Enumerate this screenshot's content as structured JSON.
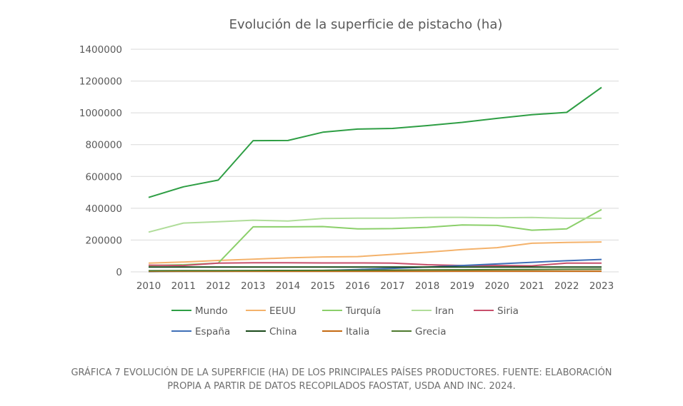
{
  "chart_data": {
    "type": "line",
    "title": "Evolución de la superficie de pistacho (ha)",
    "xlabel": "",
    "ylabel": "",
    "x": [
      "2010",
      "2011",
      "2012",
      "2013",
      "2014",
      "2015",
      "2016",
      "2017",
      "2018",
      "2019",
      "2020",
      "2021",
      "2022",
      "2023"
    ],
    "ylim": [
      0,
      1400000
    ],
    "yticks": [
      "0",
      "200000",
      "400000",
      "600000",
      "800000",
      "1000000",
      "1200000",
      "1400000"
    ],
    "grid": true,
    "legend_position": "bottom",
    "series": [
      {
        "name": "Mundo",
        "color": "#2e9e44",
        "values": [
          468000,
          535000,
          577000,
          825000,
          826000,
          878000,
          898000,
          902000,
          920000,
          940000,
          965000,
          988000,
          1003000,
          1160000
        ]
      },
      {
        "name": "EEUU",
        "color": "#f4b26b",
        "values": [
          55000,
          62000,
          72000,
          80000,
          88000,
          94000,
          96000,
          110000,
          124000,
          140000,
          152000,
          180000,
          185000,
          188000
        ]
      },
      {
        "name": "Turquía",
        "color": "#8bcf6a",
        "values": [
          40000,
          45000,
          55000,
          283000,
          283000,
          285000,
          270000,
          272000,
          280000,
          295000,
          292000,
          262000,
          270000,
          392000
        ]
      },
      {
        "name": "Iran",
        "color": "#b0dd9a",
        "values": [
          250000,
          307000,
          315000,
          325000,
          320000,
          335000,
          338000,
          338000,
          342000,
          343000,
          340000,
          342000,
          337000,
          337000
        ]
      },
      {
        "name": "Siria",
        "color": "#c84f6b",
        "values": [
          42000,
          40000,
          55000,
          57000,
          57000,
          56000,
          56000,
          55000,
          45000,
          40000,
          40000,
          38000,
          55000,
          55000
        ]
      },
      {
        "name": "España",
        "color": "#3f6fb7",
        "values": [
          2000,
          3000,
          4000,
          5000,
          6000,
          9000,
          15000,
          22000,
          30000,
          40000,
          50000,
          60000,
          70000,
          78000
        ]
      },
      {
        "name": "China",
        "color": "#1a4a1a",
        "values": [
          30000,
          30000,
          30000,
          30000,
          30000,
          30000,
          30000,
          30000,
          30000,
          30000,
          30000,
          30000,
          30000,
          30000
        ]
      },
      {
        "name": "Italia",
        "color": "#c56a12",
        "values": [
          3000,
          3000,
          3000,
          3000,
          3000,
          3000,
          3000,
          3500,
          3500,
          4000,
          4000,
          4000,
          4000,
          4000
        ]
      },
      {
        "name": "Grecia",
        "color": "#4e7a2e",
        "values": [
          7000,
          7500,
          8000,
          8500,
          9000,
          9500,
          10000,
          11000,
          12000,
          13000,
          14000,
          15000,
          16000,
          17000
        ]
      }
    ]
  },
  "caption": {
    "line1": "GRÁFICA 7 EVOLUCIÓN DE LA SUPERFICIE (HA) DE LOS PRINCIPALES PAÍSES PRODUCTORES. FUENTE: ELABORACIÓN",
    "line2": "PROPIA A PARTIR DE DATOS RECOPILADOS FAOSTAT, USDA AND INC. 2024."
  }
}
